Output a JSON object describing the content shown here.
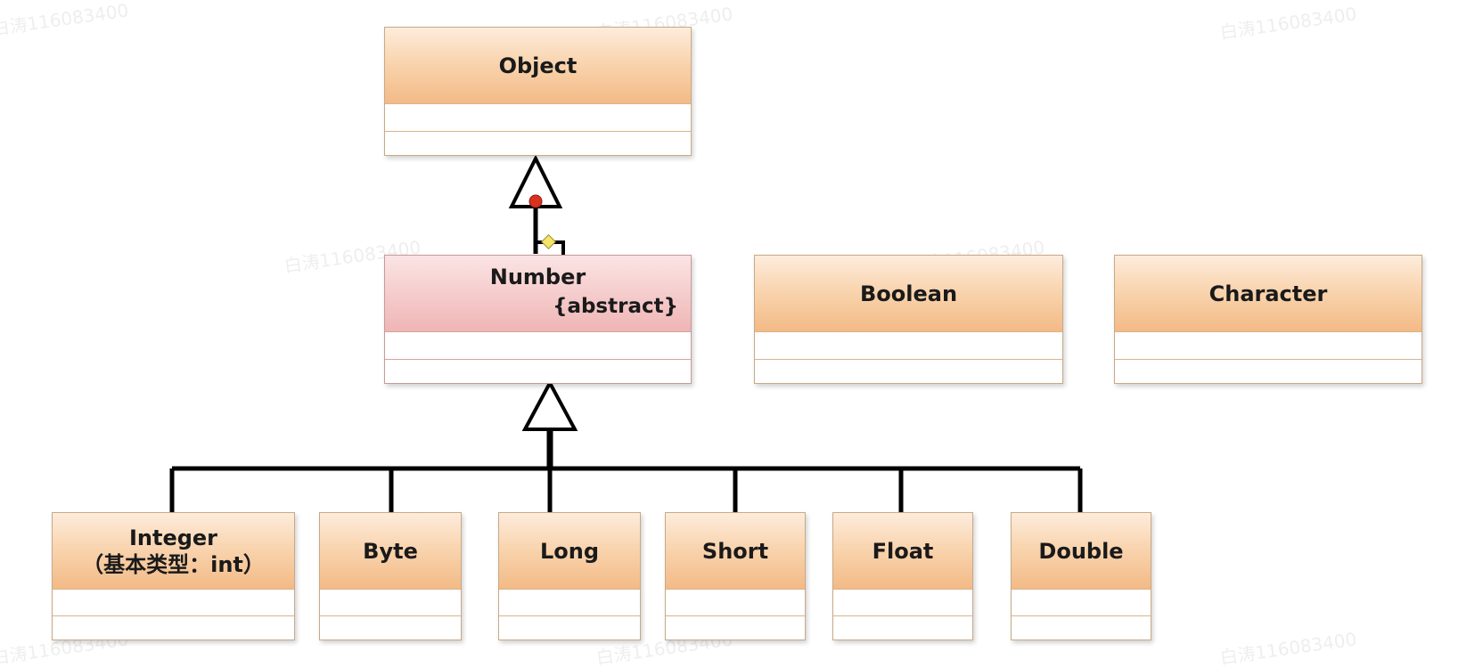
{
  "diagram": {
    "type": "uml-class-inheritance",
    "root": {
      "name": "Object"
    },
    "abstract_class": {
      "name": "Number",
      "stereotype": "{abstract}"
    },
    "standalone_classes": [
      {
        "name": "Boolean"
      },
      {
        "name": "Character"
      }
    ],
    "subclasses": [
      {
        "name": "Integer",
        "subtitle": "（基本类型：int）"
      },
      {
        "name": "Byte"
      },
      {
        "name": "Long"
      },
      {
        "name": "Short"
      },
      {
        "name": "Float"
      },
      {
        "name": "Double"
      }
    ],
    "watermark_text": "白涛116083400",
    "colors": {
      "class_header": "#f9d5b0",
      "abstract_header": "#f6cfcf",
      "connector": "#000000",
      "handle_red": "#d9321f",
      "handle_yellow": "#f6e36a"
    }
  }
}
